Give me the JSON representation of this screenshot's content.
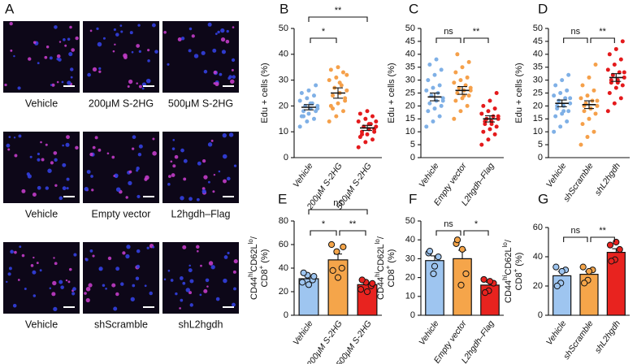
{
  "panel_a": {
    "label": "A",
    "rows": [
      {
        "captions": [
          "Vehicle",
          "200μM S-2HG",
          "500μM S-2HG"
        ]
      },
      {
        "captions": [
          "Vehicle",
          "Empty vector",
          "L2hgdh–Flag"
        ]
      },
      {
        "captions": [
          "Vehicle",
          "shScramble",
          "shL2hgdh"
        ]
      }
    ]
  },
  "chart_data": [
    {
      "type": "dot",
      "panel": "B",
      "ylabel_lines": [
        [
          {
            "text": "Edu + cells (%)"
          }
        ]
      ],
      "categories": [
        "Vehicle",
        "200μM S-2HG",
        "500μM S-2HG"
      ],
      "ylim": [
        0,
        50
      ],
      "yticks": [
        0,
        10,
        20,
        30,
        40,
        50
      ],
      "groups": [
        {
          "color": "#7fb0e6",
          "mean": 19.5,
          "sem": 1.0,
          "points": [
            12,
            14,
            15,
            16,
            17,
            18,
            18,
            19,
            20,
            20,
            21,
            22,
            23,
            24,
            25,
            26,
            28,
            16,
            21,
            19
          ]
        },
        {
          "color": "#f5a04a",
          "mean": 25,
          "sem": 2.0,
          "points": [
            14,
            16,
            18,
            20,
            21,
            22,
            24,
            25,
            26,
            27,
            28,
            30,
            31,
            33,
            34,
            35,
            23,
            19,
            29,
            32
          ]
        },
        {
          "color": "#e41a1c",
          "mean": 11.5,
          "sem": 1.0,
          "points": [
            4,
            6,
            7,
            8,
            9,
            10,
            10,
            11,
            12,
            12,
            13,
            14,
            15,
            16,
            17,
            18,
            11,
            9,
            13,
            14
          ]
        }
      ],
      "comparisons": [
        {
          "pair": [
            0,
            1
          ],
          "label": "*",
          "level": 0
        },
        {
          "pair": [
            0,
            2
          ],
          "label": "**",
          "level": 1
        }
      ]
    },
    {
      "type": "dot",
      "panel": "C",
      "ylabel_lines": [
        [
          {
            "text": "Edu + cells (%)"
          }
        ]
      ],
      "categories": [
        "Vehicle",
        "Empty vector",
        "L2hgdh–Flag"
      ],
      "ylim": [
        0,
        50
      ],
      "yticks": [
        0,
        5,
        10,
        15,
        20,
        25,
        30,
        35,
        40,
        45,
        50
      ],
      "groups": [
        {
          "color": "#7fb0e6",
          "mean": 23.5,
          "sem": 1.5,
          "points": [
            12,
            14,
            16,
            18,
            19,
            20,
            21,
            22,
            23,
            24,
            25,
            26,
            27,
            28,
            30,
            32,
            34,
            36,
            38,
            22
          ]
        },
        {
          "color": "#f5a04a",
          "mean": 26,
          "sem": 1.5,
          "points": [
            15,
            18,
            20,
            22,
            23,
            24,
            25,
            26,
            26,
            27,
            28,
            29,
            30,
            31,
            33,
            35,
            37,
            40,
            24,
            27
          ]
        },
        {
          "color": "#e41a1c",
          "mean": 15,
          "sem": 1.2,
          "points": [
            5,
            7,
            9,
            10,
            11,
            12,
            13,
            14,
            15,
            15,
            16,
            17,
            18,
            19,
            20,
            22,
            25,
            14,
            13,
            16
          ]
        }
      ],
      "comparisons": [
        {
          "pair": [
            0,
            1
          ],
          "label": "ns",
          "level": 0
        },
        {
          "pair": [
            1,
            2
          ],
          "label": "**",
          "level": 0
        }
      ]
    },
    {
      "type": "dot",
      "panel": "D",
      "ylabel_lines": [
        [
          {
            "text": "Edu + cells (%)"
          }
        ]
      ],
      "categories": [
        "Vehicle",
        "shScramble",
        "shL2hgdh"
      ],
      "ylim": [
        0,
        50
      ],
      "yticks": [
        0,
        5,
        10,
        15,
        20,
        25,
        30,
        35,
        40,
        45,
        50
      ],
      "groups": [
        {
          "color": "#7fb0e6",
          "mean": 21,
          "sem": 1.3,
          "points": [
            10,
            12,
            14,
            16,
            17,
            18,
            19,
            20,
            21,
            22,
            23,
            24,
            25,
            26,
            28,
            30,
            32,
            20,
            18,
            23
          ]
        },
        {
          "color": "#f5a04a",
          "mean": 20.5,
          "sem": 1.5,
          "points": [
            5,
            8,
            10,
            13,
            15,
            17,
            18,
            19,
            20,
            21,
            22,
            23,
            24,
            26,
            28,
            31,
            36,
            20,
            19,
            22
          ]
        },
        {
          "color": "#e41a1c",
          "mean": 31,
          "sem": 1.5,
          "points": [
            18,
            21,
            23,
            25,
            27,
            28,
            29,
            30,
            31,
            32,
            33,
            34,
            36,
            38,
            40,
            42,
            45,
            30,
            29,
            33
          ]
        }
      ],
      "comparisons": [
        {
          "pair": [
            0,
            1
          ],
          "label": "ns",
          "level": 0
        },
        {
          "pair": [
            1,
            2
          ],
          "label": "**",
          "level": 0
        }
      ]
    },
    {
      "type": "bar",
      "panel": "E",
      "ylabel_lines": [
        [
          {
            "text": "CD44"
          },
          {
            "text": "hi",
            "sup": true
          },
          {
            "text": "CD62L"
          },
          {
            "text": "lo",
            "sup": true
          },
          {
            "text": "/"
          }
        ],
        [
          {
            "text": "CD8"
          },
          {
            "text": "+",
            "sup": true
          },
          {
            "text": " (%)"
          }
        ]
      ],
      "categories": [
        "Vehicle",
        "200μM S-2HG",
        "500μM S-2HG"
      ],
      "ylim": [
        0,
        80
      ],
      "yticks": [
        0,
        20,
        40,
        60,
        80
      ],
      "groups": [
        {
          "color": "#9ec5f0",
          "mean": 31,
          "sem": 2.0,
          "points": [
            28,
            34,
            30,
            36,
            26,
            33
          ]
        },
        {
          "color": "#f5a54a",
          "mean": 47,
          "sem": 5.0,
          "points": [
            60,
            54,
            40,
            38,
            32,
            58
          ]
        },
        {
          "color": "#e8231f",
          "mean": 26,
          "sem": 1.5,
          "points": [
            22,
            28,
            25,
            30,
            20,
            27
          ]
        }
      ],
      "comparisons": [
        {
          "pair": [
            0,
            1
          ],
          "label": "*",
          "level": 0
        },
        {
          "pair": [
            1,
            2
          ],
          "label": "**",
          "level": 0
        },
        {
          "pair": [
            0,
            2
          ],
          "label": "ns",
          "level": 1
        }
      ]
    },
    {
      "type": "bar",
      "panel": "F",
      "ylabel_lines": [
        [
          {
            "text": "CD44"
          },
          {
            "text": "hi",
            "sup": true
          },
          {
            "text": "CD62L"
          },
          {
            "text": "lo",
            "sup": true
          },
          {
            "text": "/"
          }
        ],
        [
          {
            "text": "CD8"
          },
          {
            "text": "+",
            "sup": true
          },
          {
            "text": " (%)"
          }
        ]
      ],
      "categories": [
        "Vehicle",
        "Empty vector",
        "L2hgdh–Flag"
      ],
      "ylim": [
        0,
        50
      ],
      "yticks": [
        0,
        10,
        20,
        30,
        40,
        50
      ],
      "groups": [
        {
          "color": "#9ec5f0",
          "mean": 29,
          "sem": 2.5,
          "points": [
            33,
            22,
            31,
            34,
            26
          ]
        },
        {
          "color": "#f5a54a",
          "mean": 30,
          "sem": 4.5,
          "points": [
            38,
            16,
            22,
            40,
            35
          ]
        },
        {
          "color": "#e8231f",
          "mean": 16,
          "sem": 1.5,
          "points": [
            19,
            13,
            17,
            12,
            18
          ]
        }
      ],
      "comparisons": [
        {
          "pair": [
            0,
            1
          ],
          "label": "ns",
          "level": 0
        },
        {
          "pair": [
            1,
            2
          ],
          "label": "*",
          "level": 0
        }
      ]
    },
    {
      "type": "bar",
      "panel": "G",
      "ylabel_lines": [
        [
          {
            "text": "CD44"
          },
          {
            "text": "hi",
            "sup": true
          },
          {
            "text": "CD62L"
          },
          {
            "text": "lo",
            "sup": true
          },
          {
            "text": "/"
          }
        ],
        [
          {
            "text": "CD8"
          },
          {
            "text": "+",
            "sup": true
          },
          {
            "text": " (%)"
          }
        ]
      ],
      "categories": [
        "Vehicle",
        "shScramble",
        "shL2hgdh"
      ],
      "ylim": [
        0,
        60
      ],
      "yticks": [
        0,
        20,
        40,
        60
      ],
      "groups": [
        {
          "color": "#9ec5f0",
          "mean": 27,
          "sem": 3.0,
          "points": [
            33,
            22,
            31,
            20,
            30
          ]
        },
        {
          "color": "#f5a54a",
          "mean": 28,
          "sem": 2.0,
          "points": [
            33,
            24,
            31,
            22,
            30
          ]
        },
        {
          "color": "#e8231f",
          "mean": 43,
          "sem": 2.5,
          "points": [
            48,
            38,
            45,
            37,
            50
          ]
        }
      ],
      "comparisons": [
        {
          "pair": [
            0,
            1
          ],
          "label": "ns",
          "level": 0
        },
        {
          "pair": [
            1,
            2
          ],
          "label": "**",
          "level": 0
        }
      ]
    }
  ]
}
